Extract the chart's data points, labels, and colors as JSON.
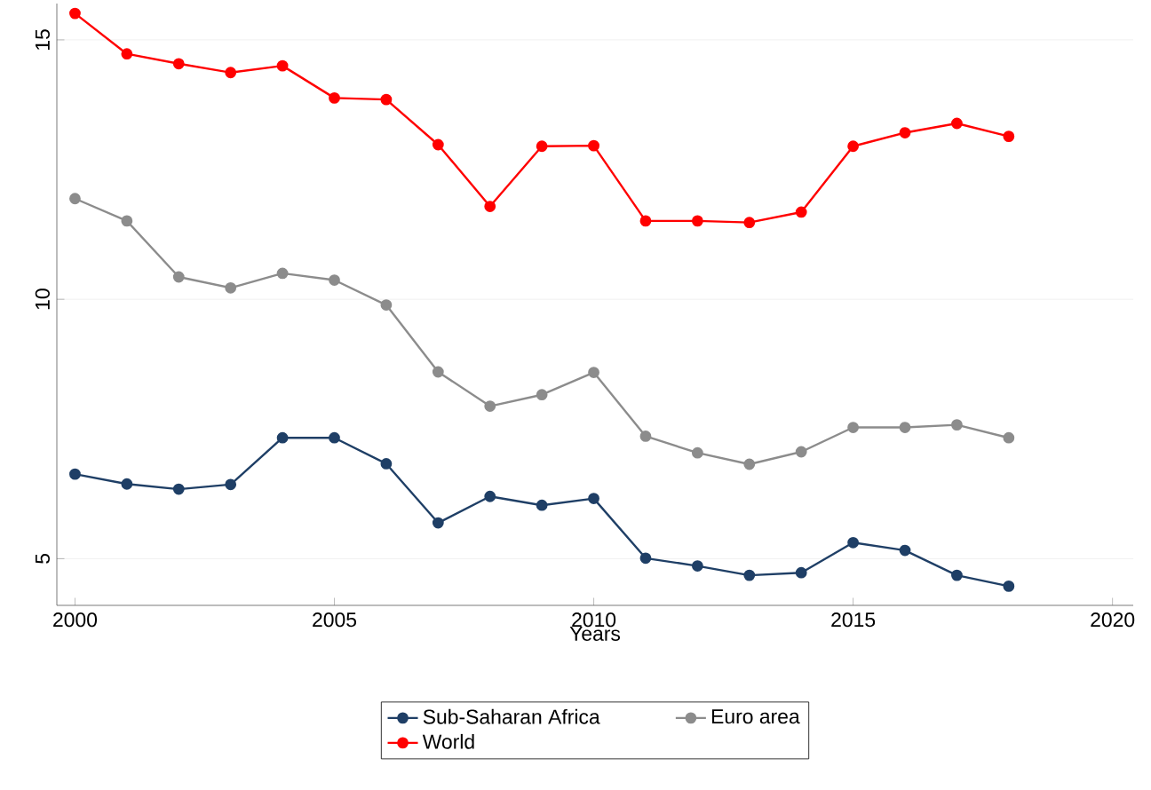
{
  "chart_data": {
    "type": "line",
    "xlabel": "Years",
    "x": [
      2000,
      2001,
      2002,
      2003,
      2004,
      2005,
      2006,
      2007,
      2008,
      2009,
      2010,
      2011,
      2012,
      2013,
      2014,
      2015,
      2016,
      2017,
      2018
    ],
    "series": [
      {
        "name": "Sub-Saharan Africa",
        "color": "#1f3f66",
        "values": [
          6.63,
          6.44,
          6.34,
          6.43,
          7.33,
          7.33,
          6.83,
          5.69,
          6.2,
          6.03,
          6.16,
          5.01,
          4.86,
          4.68,
          4.73,
          5.31,
          5.16,
          4.68,
          4.47
        ]
      },
      {
        "name": "Euro area",
        "color": "#8c8c8c",
        "values": [
          11.94,
          11.51,
          10.43,
          10.22,
          10.5,
          10.37,
          9.89,
          8.6,
          7.94,
          8.16,
          8.59,
          7.36,
          7.04,
          6.82,
          7.06,
          7.53,
          7.53,
          7.58,
          7.33
        ]
      },
      {
        "name": "World",
        "color": "#ff0000",
        "values": [
          15.51,
          14.73,
          14.54,
          14.37,
          14.5,
          13.88,
          13.85,
          12.98,
          11.79,
          12.95,
          12.96,
          11.51,
          11.51,
          11.48,
          11.68,
          12.95,
          13.21,
          13.39,
          13.14
        ]
      }
    ],
    "xlim": [
      1999.65,
      2020.4
    ],
    "ylim": [
      4.1,
      15.7
    ],
    "xticks": [
      2000,
      2005,
      2010,
      2015,
      2020
    ],
    "yticks": [
      5,
      10,
      15
    ],
    "grid": "y",
    "legend": "bottom",
    "marker": "circle",
    "line_style": "solid"
  }
}
